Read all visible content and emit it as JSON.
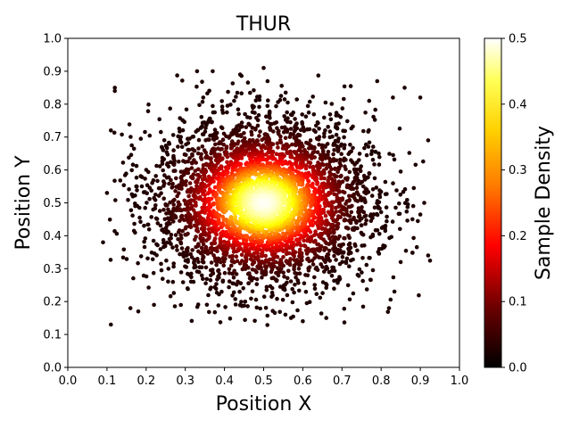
{
  "chart_data": {
    "type": "scatter",
    "title": "THUR",
    "xlabel": "Position X",
    "ylabel": "Position Y",
    "xlim": [
      0.0,
      1.0
    ],
    "ylim": [
      0.0,
      1.0
    ],
    "xticks": [
      "0.0",
      "0.1",
      "0.2",
      "0.3",
      "0.4",
      "0.5",
      "0.6",
      "0.7",
      "0.8",
      "0.9",
      "1.0"
    ],
    "yticks": [
      "0.0",
      "0.1",
      "0.2",
      "0.3",
      "0.4",
      "0.5",
      "0.6",
      "0.7",
      "0.8",
      "0.9",
      "1.0"
    ],
    "grid": false,
    "colormap": "hot",
    "colorbar": {
      "label": "Sample Density",
      "range": [
        0.0,
        0.5
      ],
      "ticks": [
        "0.0",
        "0.1",
        "0.2",
        "0.3",
        "0.4",
        "0.5"
      ]
    },
    "distribution": {
      "kind": "gaussian-2d",
      "mean": [
        0.5,
        0.5
      ],
      "std": [
        0.14,
        0.13
      ],
      "point_count": 4000,
      "range_x": [
        0.09,
        0.93
      ],
      "range_y": [
        0.12,
        0.91
      ]
    },
    "series": [
      {
        "points": [
          [
            0.12,
            0.85
          ],
          [
            0.12,
            0.84
          ],
          [
            0.11,
            0.72
          ],
          [
            0.1,
            0.53
          ],
          [
            0.09,
            0.38
          ],
          [
            0.11,
            0.13
          ],
          [
            0.16,
            0.18
          ],
          [
            0.18,
            0.17
          ],
          [
            0.22,
            0.19
          ],
          [
            0.33,
            0.9
          ],
          [
            0.37,
            0.9
          ],
          [
            0.5,
            0.91
          ],
          [
            0.51,
            0.87
          ],
          [
            0.44,
            0.89
          ],
          [
            0.57,
            0.15
          ],
          [
            0.6,
            0.14
          ],
          [
            0.66,
            0.15
          ],
          [
            0.82,
            0.18
          ],
          [
            0.9,
            0.82
          ],
          [
            0.92,
            0.69
          ],
          [
            0.91,
            0.5
          ],
          [
            0.92,
            0.34
          ],
          [
            0.85,
            0.32
          ],
          [
            0.88,
            0.45
          ],
          [
            0.79,
            0.87
          ],
          [
            0.86,
            0.85
          ],
          [
            0.83,
            0.82
          ]
        ]
      }
    ]
  }
}
